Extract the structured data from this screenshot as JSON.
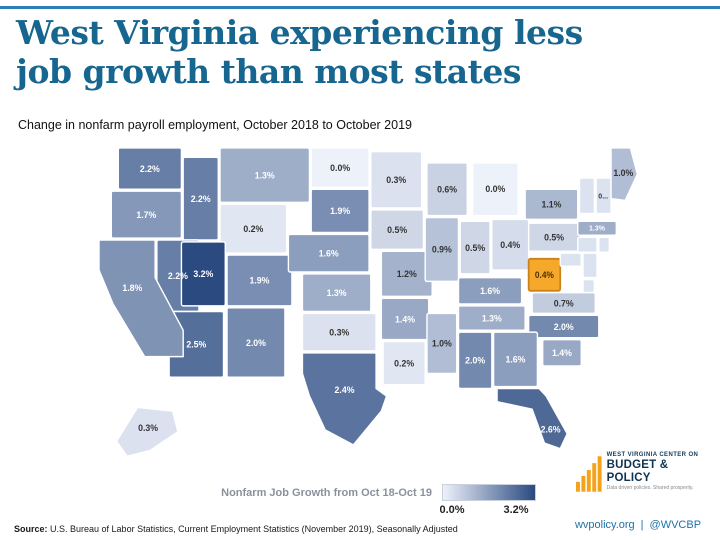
{
  "page": {
    "title_line1": "West Virginia experiencing less",
    "title_line2": "job growth than most states",
    "subtitle": "Change in nonfarm payroll employment, October 2018 to October 2019"
  },
  "legend": {
    "caption": "Nonfarm Job Growth from Oct 18-Oct 19",
    "min_label": "0.0%",
    "max_label": "3.2%"
  },
  "source": {
    "prefix": "Source:",
    "text": " U.S. Bureau of Labor Statistics, Current Employment Statistics (November 2019), Seasonally Adjusted"
  },
  "footer": {
    "website": "wvpolicy.org",
    "separator": "|",
    "social": "@WVCBP"
  },
  "logo": {
    "org_line1": "WEST VIRGINIA CENTER ON",
    "org_line2": "BUDGET & POLICY",
    "tagline": "Data driven policies. Shared prosperity.",
    "bars_icon": "bar-chart-icon"
  },
  "colors": {
    "title": "#176690",
    "top_rule": "#2e7fb5",
    "scale_min": "#edf1fa",
    "scale_max": "#2a4a80",
    "highlight_fill": "#f5a829",
    "highlight_stroke": "#c9831a",
    "footer_link": "#1f72a8",
    "logo_orange": "#f5a21b"
  },
  "chart_data": {
    "type": "heatmap",
    "subtype": "us_choropleth_map",
    "title": "Change in nonfarm payroll employment, October 2018 to October 2019",
    "unit": "percent",
    "legend_caption": "Nonfarm Job Growth from Oct 18-Oct 19",
    "scale": {
      "min": 0.0,
      "max": 3.2,
      "min_label": "0.0%",
      "max_label": "3.2%"
    },
    "highlight_state": "WV",
    "states": [
      {
        "code": "WA",
        "name": "Washington",
        "label": "2.2%",
        "value": 2.2
      },
      {
        "code": "OR",
        "name": "Oregon",
        "label": "1.7%",
        "value": 1.7
      },
      {
        "code": "CA",
        "name": "California",
        "label": "1.8%",
        "value": 1.8
      },
      {
        "code": "NV",
        "name": "Nevada",
        "label": "2.2%",
        "value": 2.2
      },
      {
        "code": "ID",
        "name": "Idaho",
        "label": "2.2%",
        "value": 2.2
      },
      {
        "code": "UT",
        "name": "Utah",
        "label": "3.2%",
        "value": 3.2
      },
      {
        "code": "AZ",
        "name": "Arizona",
        "label": "2.5%",
        "value": 2.5
      },
      {
        "code": "MT",
        "name": "Montana",
        "label": "1.3%",
        "value": 1.3
      },
      {
        "code": "WY",
        "name": "Wyoming",
        "label": "0.2%",
        "value": 0.2
      },
      {
        "code": "CO",
        "name": "Colorado",
        "label": "1.9%",
        "value": 1.9
      },
      {
        "code": "NM",
        "name": "New Mexico",
        "label": "2.0%",
        "value": 2.0
      },
      {
        "code": "ND",
        "name": "North Dakota",
        "label": "0.0%",
        "value": 0.0
      },
      {
        "code": "SD",
        "name": "South Dakota",
        "label": "1.9%",
        "value": 1.9
      },
      {
        "code": "NE",
        "name": "Nebraska",
        "label": "1.6%",
        "value": 1.6
      },
      {
        "code": "KS",
        "name": "Kansas",
        "label": "1.3%",
        "value": 1.3
      },
      {
        "code": "OK",
        "name": "Oklahoma",
        "label": "0.3%",
        "value": 0.3
      },
      {
        "code": "TX",
        "name": "Texas",
        "label": "2.4%",
        "value": 2.4
      },
      {
        "code": "MN",
        "name": "Minnesota",
        "label": "0.3%",
        "value": 0.3
      },
      {
        "code": "IA",
        "name": "Iowa",
        "label": "0.5%",
        "value": 0.5
      },
      {
        "code": "MO",
        "name": "Missouri",
        "label": "1.2%",
        "value": 1.2
      },
      {
        "code": "AR",
        "name": "Arkansas",
        "label": "1.4%",
        "value": 1.4
      },
      {
        "code": "LA",
        "name": "Louisiana",
        "label": "0.2%",
        "value": 0.2
      },
      {
        "code": "WI",
        "name": "Wisconsin",
        "label": "0.6%",
        "value": 0.6
      },
      {
        "code": "IL",
        "name": "Illinois",
        "label": "0.9%",
        "value": 0.9
      },
      {
        "code": "MI",
        "name": "Michigan",
        "label": "0.0%",
        "value": 0.0
      },
      {
        "code": "IN",
        "name": "Indiana",
        "label": "0.5%",
        "value": 0.5
      },
      {
        "code": "OH",
        "name": "Ohio",
        "label": "0.4%",
        "value": 0.4
      },
      {
        "code": "KY",
        "name": "Kentucky",
        "label": "1.6%",
        "value": 1.6
      },
      {
        "code": "TN",
        "name": "Tennessee",
        "label": "1.3%",
        "value": 1.3
      },
      {
        "code": "MS",
        "name": "Mississippi",
        "label": "1.0%",
        "value": 1.0
      },
      {
        "code": "AL",
        "name": "Alabama",
        "label": "2.0%",
        "value": 2.0
      },
      {
        "code": "GA",
        "name": "Georgia",
        "label": "1.6%",
        "value": 1.6
      },
      {
        "code": "FL",
        "name": "Florida",
        "label": "2.6%",
        "value": 2.6
      },
      {
        "code": "SC",
        "name": "South Carolina",
        "label": "1.4%",
        "value": 1.4
      },
      {
        "code": "NC",
        "name": "North Carolina",
        "label": "2.0%",
        "value": 2.0
      },
      {
        "code": "VA",
        "name": "Virginia",
        "label": "0.7%",
        "value": 0.7
      },
      {
        "code": "WV",
        "name": "West Virginia",
        "label": "0.4%",
        "value": 0.4,
        "highlight": true
      },
      {
        "code": "PA",
        "name": "Pennsylvania",
        "label": "0.5%",
        "value": 0.5
      },
      {
        "code": "NY",
        "name": "New York",
        "label": "1.1%",
        "value": 1.1
      },
      {
        "code": "MA",
        "name": "Massachusetts",
        "label": "1.3%",
        "value": 1.3
      },
      {
        "code": "NH",
        "name": "New Hampshire",
        "label": "0...",
        "value": null
      },
      {
        "code": "ME",
        "name": "Maine",
        "label": "1.0%",
        "value": 1.0
      },
      {
        "code": "AK",
        "name": "Alaska",
        "label": "0.3%",
        "value": 0.3
      }
    ],
    "unlabeled_states": [
      "VT",
      "CT",
      "RI",
      "NJ",
      "DE",
      "MD"
    ]
  }
}
